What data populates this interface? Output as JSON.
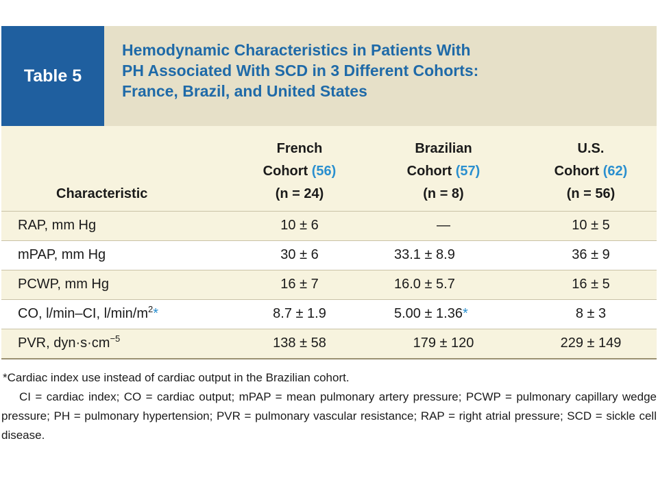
{
  "table_label": "Table 5",
  "title_lines": [
    "Hemodynamic Characteristics in Patients With",
    "PH Associated With SCD in 3 Different Cohorts:",
    "France, Brazil, and United States"
  ],
  "columns": {
    "characteristic": "Characteristic",
    "french": {
      "line1": "French",
      "line2": "Cohort",
      "ref": "(56)",
      "n": "(n = 24)"
    },
    "brazilian": {
      "line1": "Brazilian",
      "line2": "Cohort",
      "ref": "(57)",
      "n": "(n = 8)"
    },
    "us": {
      "line1": "U.S.",
      "line2": "Cohort",
      "ref": "(62)",
      "n": "(n = 56)"
    }
  },
  "rows": [
    {
      "name": "RAP, mm Hg",
      "french": "10 ± 6",
      "brazilian": "—",
      "us": "10 ± 5"
    },
    {
      "name": "mPAP, mm Hg",
      "french": "30 ± 6",
      "brazilian": "33.1 ± 8.9",
      "us": "36 ± 9"
    },
    {
      "name": "PCWP, mm Hg",
      "french": "16 ± 7",
      "brazilian": "16.0 ± 5.7",
      "us": "16 ± 5"
    },
    {
      "name_main": "CO, l/min–CI, l/min/m",
      "name_sup": "2",
      "name_mark": "*",
      "french": "8.7 ± 1.9",
      "brazilian_main": "5.00 ± 1.36",
      "brazilian_mark": "*",
      "us": "8 ± 3"
    },
    {
      "name_main": "PVR, dyn·s·cm",
      "name_sup": "−5",
      "french": "138 ± 58",
      "brazilian": "179 ± 120",
      "us": "229 ± 149"
    }
  ],
  "footnote_1": "*Cardiac index use instead of cardiac output in the Brazilian cohort.",
  "footnote_2": "CI = cardiac index; CO = cardiac output; mPAP = mean pulmonary artery pressure; PCWP = pulmonary capillary wedge pressure; PH = pulmonary hypertension; PVR = pulmonary vascular resistance; RAP = right atrial pressure; SCD = sickle cell disease.",
  "colors": {
    "label_bg": "#1f5f9f",
    "title_bg": "#e6e0c8",
    "title_text": "#1f6aa8",
    "body_bg": "#f7f3de",
    "ref": "#2a8fcf"
  }
}
